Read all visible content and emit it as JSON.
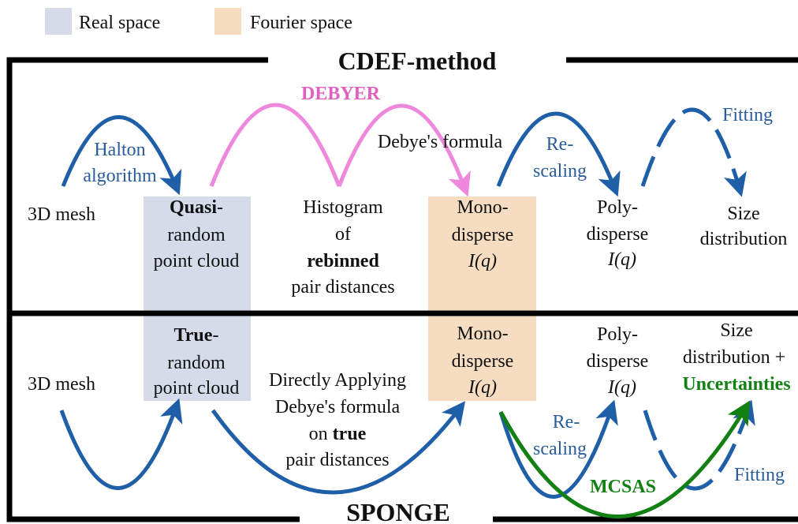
{
  "legend": {
    "real": "Real space",
    "fourier": "Fourier space"
  },
  "cdef": {
    "title": "CDEF-method",
    "mesh": "3D mesh",
    "halton": [
      "Halton",
      "algorithm"
    ],
    "point_cloud": {
      "bold": "Quasi",
      "lines": [
        "-",
        "random",
        "point cloud"
      ]
    },
    "debyer": "DEBYER",
    "histogram": {
      "lines": [
        "Histogram",
        "of"
      ],
      "bold": "rebinned",
      "last": "pair distances"
    },
    "debye_formula": "Debye's formula",
    "mono": [
      "Mono-",
      "disperse",
      "I(q)"
    ],
    "rescaling": [
      "Re-",
      "scaling"
    ],
    "poly": [
      "Poly-",
      "disperse",
      "I(q)"
    ],
    "fitting": "Fitting",
    "size": [
      "Size",
      "distribution"
    ]
  },
  "sponge": {
    "title": "SPONGE",
    "mesh": "3D mesh",
    "point_cloud": {
      "bold": "True",
      "lines": [
        "-",
        "random",
        "point cloud"
      ]
    },
    "direct": {
      "lines": [
        "Directly Applying",
        "Debye's formula",
        "on "
      ],
      "bold": "true",
      "last": "pair distances"
    },
    "mono": [
      "Mono-",
      "disperse",
      "I(q)"
    ],
    "rescaling": [
      "Re-",
      "scaling"
    ],
    "poly": [
      "Poly-",
      "disperse",
      "I(q)"
    ],
    "mcsas": "MCSAS",
    "fitting": "Fitting",
    "size": [
      "Size",
      "distribution +"
    ],
    "uncertainties": "Uncertainties"
  }
}
